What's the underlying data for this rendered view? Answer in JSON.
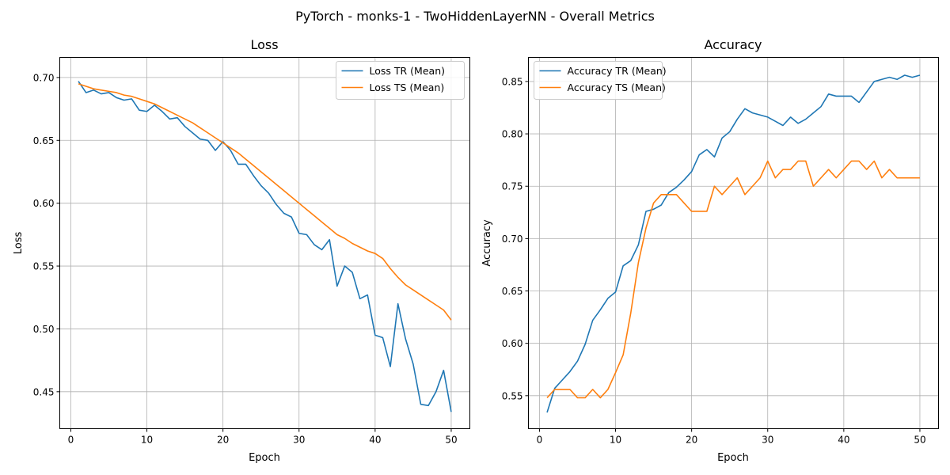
{
  "figure": {
    "suptitle": "PyTorch - monks-1 - TwoHiddenLayerNN - Overall Metrics"
  },
  "colors": {
    "tr": "#1f77b4",
    "ts": "#ff7f0e",
    "grid": "#b0b0b0"
  },
  "chart_data": [
    {
      "type": "line",
      "title": "Loss",
      "xlabel": "Epoch",
      "ylabel": "Loss",
      "xlim": [
        -1.45,
        52.45
      ],
      "ylim": [
        0.4206,
        0.716
      ],
      "xticks": [
        0,
        10,
        20,
        30,
        40,
        50
      ],
      "yticks": [
        0.45,
        0.5,
        0.55,
        0.6,
        0.65,
        0.7
      ],
      "ytick_labels": [
        "0.45",
        "0.50",
        "0.55",
        "0.60",
        "0.65",
        "0.70"
      ],
      "grid": true,
      "legend": "top-right",
      "x": [
        1,
        2,
        3,
        4,
        5,
        6,
        7,
        8,
        9,
        10,
        11,
        12,
        13,
        14,
        15,
        16,
        17,
        18,
        19,
        20,
        21,
        22,
        23,
        24,
        25,
        26,
        27,
        28,
        29,
        30,
        31,
        32,
        33,
        34,
        35,
        36,
        37,
        38,
        39,
        40,
        41,
        42,
        43,
        44,
        45,
        46,
        47,
        48,
        49,
        50
      ],
      "series": [
        {
          "name": "Loss TR (Mean)",
          "values": [
            0.697,
            0.688,
            0.69,
            0.687,
            0.688,
            0.684,
            0.682,
            0.683,
            0.674,
            0.673,
            0.678,
            0.673,
            0.667,
            0.668,
            0.661,
            0.656,
            0.651,
            0.65,
            0.642,
            0.649,
            0.642,
            0.631,
            0.631,
            0.622,
            0.614,
            0.608,
            0.599,
            0.592,
            0.589,
            0.576,
            0.575,
            0.567,
            0.563,
            0.571,
            0.534,
            0.55,
            0.545,
            0.524,
            0.527,
            0.495,
            0.493,
            0.47,
            0.52,
            0.492,
            0.472,
            0.44,
            0.439,
            0.45,
            0.467,
            0.434
          ]
        },
        {
          "name": "Loss TS (Mean)",
          "values": [
            0.695,
            0.693,
            0.691,
            0.69,
            0.689,
            0.688,
            0.686,
            0.685,
            0.683,
            0.681,
            0.679,
            0.676,
            0.673,
            0.67,
            0.667,
            0.664,
            0.66,
            0.656,
            0.652,
            0.648,
            0.644,
            0.64,
            0.635,
            0.63,
            0.625,
            0.62,
            0.615,
            0.61,
            0.605,
            0.6,
            0.595,
            0.59,
            0.585,
            0.58,
            0.575,
            0.572,
            0.568,
            0.565,
            0.562,
            0.56,
            0.556,
            0.548,
            0.541,
            0.535,
            0.531,
            0.527,
            0.523,
            0.519,
            0.515,
            0.507
          ]
        }
      ]
    },
    {
      "type": "line",
      "title": "Accuracy",
      "xlabel": "Epoch",
      "ylabel": "Accuracy",
      "xlim": [
        -1.45,
        52.45
      ],
      "ylim": [
        0.5185,
        0.873
      ],
      "xticks": [
        0,
        10,
        20,
        30,
        40,
        50
      ],
      "yticks": [
        0.55,
        0.6,
        0.65,
        0.7,
        0.75,
        0.8,
        0.85
      ],
      "ytick_labels": [
        "0.55",
        "0.60",
        "0.65",
        "0.70",
        "0.75",
        "0.80",
        "0.85"
      ],
      "grid": true,
      "legend": "top-left",
      "x": [
        1,
        2,
        3,
        4,
        5,
        6,
        7,
        8,
        9,
        10,
        11,
        12,
        13,
        14,
        15,
        16,
        17,
        18,
        19,
        20,
        21,
        22,
        23,
        24,
        25,
        26,
        27,
        28,
        29,
        30,
        31,
        32,
        33,
        34,
        35,
        36,
        37,
        38,
        39,
        40,
        41,
        42,
        43,
        44,
        45,
        46,
        47,
        48,
        49,
        50
      ],
      "series": [
        {
          "name": "Accuracy TR (Mean)",
          "values": [
            0.534,
            0.557,
            0.565,
            0.573,
            0.583,
            0.599,
            0.622,
            0.632,
            0.643,
            0.649,
            0.674,
            0.679,
            0.694,
            0.726,
            0.728,
            0.732,
            0.744,
            0.749,
            0.756,
            0.764,
            0.78,
            0.785,
            0.778,
            0.796,
            0.802,
            0.814,
            0.824,
            0.82,
            0.818,
            0.816,
            0.812,
            0.808,
            0.816,
            0.81,
            0.814,
            0.82,
            0.826,
            0.838,
            0.836,
            0.836,
            0.836,
            0.83,
            0.84,
            0.85,
            0.852,
            0.854,
            0.852,
            0.856,
            0.854,
            0.856
          ]
        },
        {
          "name": "Accuracy TS (Mean)",
          "values": [
            0.548,
            0.556,
            0.556,
            0.556,
            0.548,
            0.548,
            0.556,
            0.548,
            0.556,
            0.572,
            0.589,
            0.629,
            0.677,
            0.71,
            0.734,
            0.742,
            0.742,
            0.742,
            0.734,
            0.726,
            0.726,
            0.726,
            0.75,
            0.742,
            0.75,
            0.758,
            0.742,
            0.75,
            0.758,
            0.774,
            0.758,
            0.766,
            0.766,
            0.774,
            0.774,
            0.75,
            0.758,
            0.766,
            0.758,
            0.766,
            0.774,
            0.774,
            0.766,
            0.774,
            0.758,
            0.766,
            0.758,
            0.758,
            0.758,
            0.758
          ]
        }
      ]
    }
  ]
}
